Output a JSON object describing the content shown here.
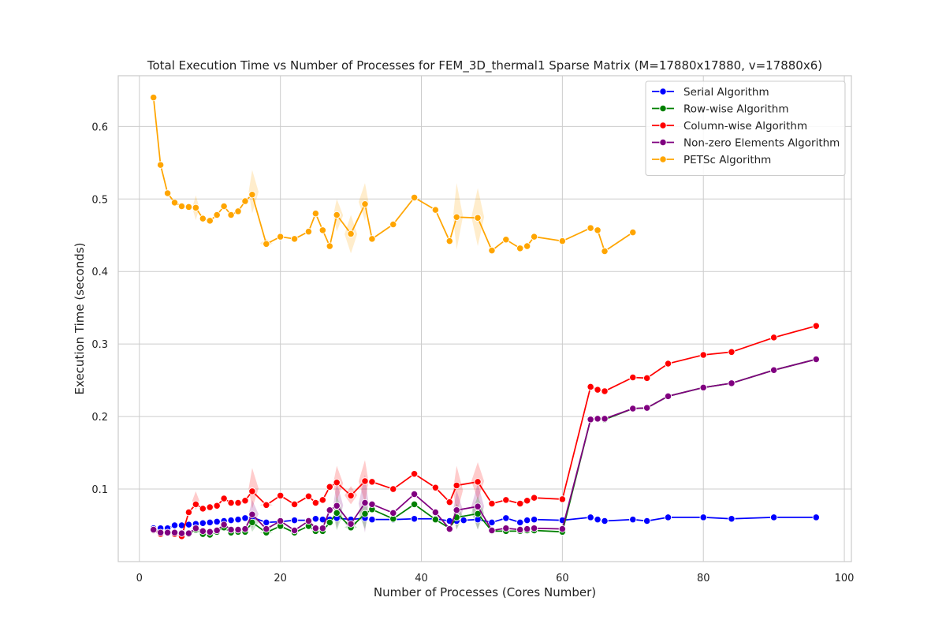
{
  "chart_data": {
    "type": "line",
    "title": "Total Execution Time vs Number of Processes for FEM_3D_thermal1 Sparse Matrix (M=17880x17880, v=17880x6)",
    "xlabel": "Number of Processes (Cores Number)",
    "ylabel": "Execution Time (seconds)",
    "xlim": [
      -3,
      101
    ],
    "ylim": [
      0.0,
      0.67
    ],
    "xticks": [
      0,
      20,
      40,
      60,
      80,
      100
    ],
    "yticks": [
      0.1,
      0.2,
      0.3,
      0.4,
      0.5,
      0.6
    ],
    "grid": true,
    "legend_position": "top-right",
    "series": [
      {
        "name": "Serial Algorithm",
        "color": "#0000ff",
        "points": [
          [
            2,
            0.046
          ],
          [
            3,
            0.046
          ],
          [
            4,
            0.046
          ],
          [
            5,
            0.05
          ],
          [
            6,
            0.05
          ],
          [
            7,
            0.051
          ],
          [
            8,
            0.052
          ],
          [
            9,
            0.053
          ],
          [
            10,
            0.054
          ],
          [
            11,
            0.055
          ],
          [
            12,
            0.056
          ],
          [
            13,
            0.057
          ],
          [
            14,
            0.058
          ],
          [
            15,
            0.06
          ],
          [
            16,
            0.061
          ],
          [
            18,
            0.054
          ],
          [
            20,
            0.055
          ],
          [
            22,
            0.057
          ],
          [
            24,
            0.057
          ],
          [
            25,
            0.059
          ],
          [
            26,
            0.058
          ],
          [
            27,
            0.058
          ],
          [
            28,
            0.06
          ],
          [
            30,
            0.058
          ],
          [
            32,
            0.06
          ],
          [
            33,
            0.058
          ],
          [
            36,
            0.058
          ],
          [
            39,
            0.059
          ],
          [
            42,
            0.059
          ],
          [
            44,
            0.056
          ],
          [
            45,
            0.056
          ],
          [
            46,
            0.057
          ],
          [
            48,
            0.058
          ],
          [
            50,
            0.054
          ],
          [
            52,
            0.06
          ],
          [
            54,
            0.054
          ],
          [
            55,
            0.057
          ],
          [
            56,
            0.058
          ],
          [
            60,
            0.057
          ],
          [
            64,
            0.061
          ],
          [
            65,
            0.058
          ],
          [
            66,
            0.056
          ],
          [
            70,
            0.058
          ],
          [
            72,
            0.056
          ],
          [
            75,
            0.061
          ],
          [
            80,
            0.061
          ],
          [
            84,
            0.059
          ],
          [
            90,
            0.061
          ],
          [
            96,
            0.061
          ]
        ]
      },
      {
        "name": "Row-wise Algorithm",
        "color": "#008000",
        "points": [
          [
            2,
            0.043
          ],
          [
            3,
            0.04
          ],
          [
            4,
            0.04
          ],
          [
            5,
            0.039
          ],
          [
            6,
            0.038
          ],
          [
            7,
            0.038
          ],
          [
            8,
            0.044
          ],
          [
            9,
            0.038
          ],
          [
            10,
            0.037
          ],
          [
            11,
            0.041
          ],
          [
            12,
            0.047
          ],
          [
            13,
            0.04
          ],
          [
            14,
            0.041
          ],
          [
            15,
            0.041
          ],
          [
            16,
            0.054
          ],
          [
            18,
            0.04
          ],
          [
            20,
            0.049
          ],
          [
            22,
            0.04
          ],
          [
            24,
            0.049
          ],
          [
            25,
            0.042
          ],
          [
            26,
            0.042
          ],
          [
            27,
            0.054
          ],
          [
            28,
            0.067
          ],
          [
            30,
            0.047
          ],
          [
            32,
            0.066
          ],
          [
            33,
            0.072
          ],
          [
            36,
            0.059
          ],
          [
            39,
            0.079
          ],
          [
            42,
            0.058
          ],
          [
            44,
            0.046
          ],
          [
            45,
            0.061
          ],
          [
            48,
            0.066
          ],
          [
            50,
            0.042
          ],
          [
            52,
            0.042
          ],
          [
            54,
            0.042
          ],
          [
            55,
            0.043
          ],
          [
            56,
            0.043
          ],
          [
            60,
            0.041
          ],
          [
            64,
            0.196
          ],
          [
            65,
            0.197
          ],
          [
            66,
            0.196
          ],
          [
            70,
            0.211
          ],
          [
            72,
            0.212
          ],
          [
            75,
            0.228
          ],
          [
            80,
            0.24
          ],
          [
            84,
            0.246
          ],
          [
            90,
            0.264
          ],
          [
            96,
            0.279
          ]
        ]
      },
      {
        "name": "Column-wise Algorithm",
        "color": "#ff0000",
        "points": [
          [
            2,
            0.044
          ],
          [
            3,
            0.038
          ],
          [
            4,
            0.04
          ],
          [
            5,
            0.038
          ],
          [
            6,
            0.035
          ],
          [
            7,
            0.068
          ],
          [
            8,
            0.079
          ],
          [
            9,
            0.073
          ],
          [
            10,
            0.075
          ],
          [
            11,
            0.077
          ],
          [
            12,
            0.087
          ],
          [
            13,
            0.081
          ],
          [
            14,
            0.081
          ],
          [
            15,
            0.084
          ],
          [
            16,
            0.097
          ],
          [
            18,
            0.078
          ],
          [
            20,
            0.091
          ],
          [
            22,
            0.079
          ],
          [
            24,
            0.09
          ],
          [
            25,
            0.081
          ],
          [
            26,
            0.085
          ],
          [
            27,
            0.103
          ],
          [
            28,
            0.109
          ],
          [
            30,
            0.091
          ],
          [
            32,
            0.111
          ],
          [
            33,
            0.11
          ],
          [
            36,
            0.1
          ],
          [
            39,
            0.121
          ],
          [
            42,
            0.102
          ],
          [
            44,
            0.082
          ],
          [
            45,
            0.105
          ],
          [
            48,
            0.11
          ],
          [
            50,
            0.08
          ],
          [
            52,
            0.085
          ],
          [
            54,
            0.08
          ],
          [
            55,
            0.084
          ],
          [
            56,
            0.088
          ],
          [
            60,
            0.086
          ],
          [
            64,
            0.241
          ],
          [
            65,
            0.237
          ],
          [
            66,
            0.235
          ],
          [
            70,
            0.254
          ],
          [
            72,
            0.253
          ],
          [
            75,
            0.273
          ],
          [
            80,
            0.285
          ],
          [
            84,
            0.289
          ],
          [
            90,
            0.309
          ],
          [
            96,
            0.325
          ]
        ]
      },
      {
        "name": "Non-zero Elements Algorithm",
        "color": "#800080",
        "points": [
          [
            2,
            0.044
          ],
          [
            3,
            0.04
          ],
          [
            4,
            0.04
          ],
          [
            5,
            0.04
          ],
          [
            6,
            0.039
          ],
          [
            7,
            0.039
          ],
          [
            8,
            0.046
          ],
          [
            9,
            0.042
          ],
          [
            10,
            0.041
          ],
          [
            11,
            0.043
          ],
          [
            12,
            0.051
          ],
          [
            13,
            0.044
          ],
          [
            14,
            0.044
          ],
          [
            15,
            0.045
          ],
          [
            16,
            0.065
          ],
          [
            18,
            0.045
          ],
          [
            20,
            0.056
          ],
          [
            22,
            0.043
          ],
          [
            24,
            0.056
          ],
          [
            25,
            0.046
          ],
          [
            26,
            0.046
          ],
          [
            27,
            0.071
          ],
          [
            28,
            0.077
          ],
          [
            30,
            0.052
          ],
          [
            32,
            0.081
          ],
          [
            33,
            0.079
          ],
          [
            36,
            0.067
          ],
          [
            39,
            0.093
          ],
          [
            42,
            0.068
          ],
          [
            44,
            0.045
          ],
          [
            45,
            0.071
          ],
          [
            48,
            0.076
          ],
          [
            50,
            0.043
          ],
          [
            52,
            0.046
          ],
          [
            54,
            0.044
          ],
          [
            55,
            0.045
          ],
          [
            56,
            0.046
          ],
          [
            60,
            0.045
          ],
          [
            64,
            0.196
          ],
          [
            65,
            0.197
          ],
          [
            66,
            0.197
          ],
          [
            70,
            0.211
          ],
          [
            72,
            0.212
          ],
          [
            75,
            0.228
          ],
          [
            80,
            0.24
          ],
          [
            84,
            0.246
          ],
          [
            90,
            0.264
          ],
          [
            96,
            0.279
          ]
        ]
      },
      {
        "name": "PETSc Algorithm",
        "color": "#ffa500",
        "points": [
          [
            2,
            0.64
          ],
          [
            3,
            0.547
          ],
          [
            4,
            0.508
          ],
          [
            5,
            0.495
          ],
          [
            6,
            0.49
          ],
          [
            7,
            0.489
          ],
          [
            8,
            0.488
          ],
          [
            9,
            0.473
          ],
          [
            10,
            0.47
          ],
          [
            11,
            0.478
          ],
          [
            12,
            0.49
          ],
          [
            13,
            0.478
          ],
          [
            14,
            0.483
          ],
          [
            15,
            0.497
          ],
          [
            16,
            0.506
          ],
          [
            18,
            0.438
          ],
          [
            20,
            0.448
          ],
          [
            22,
            0.445
          ],
          [
            24,
            0.455
          ],
          [
            25,
            0.48
          ],
          [
            26,
            0.457
          ],
          [
            27,
            0.435
          ],
          [
            28,
            0.478
          ],
          [
            30,
            0.452
          ],
          [
            32,
            0.493
          ],
          [
            33,
            0.445
          ],
          [
            36,
            0.465
          ],
          [
            39,
            0.502
          ],
          [
            42,
            0.485
          ],
          [
            44,
            0.442
          ],
          [
            45,
            0.475
          ],
          [
            48,
            0.474
          ],
          [
            50,
            0.429
          ],
          [
            52,
            0.444
          ],
          [
            54,
            0.432
          ],
          [
            55,
            0.435
          ],
          [
            56,
            0.448
          ],
          [
            60,
            0.442
          ],
          [
            64,
            0.46
          ],
          [
            65,
            0.457
          ],
          [
            66,
            0.428
          ],
          [
            70,
            0.454
          ]
        ]
      }
    ],
    "confidence_bands": [
      {
        "series": "PETSc Algorithm",
        "ranges": [
          [
            8,
            0.471,
            0.505
          ],
          [
            16,
            0.48,
            0.54
          ],
          [
            18,
            0.433,
            0.445
          ],
          [
            28,
            0.455,
            0.5
          ],
          [
            30,
            0.425,
            0.478
          ],
          [
            32,
            0.47,
            0.522
          ],
          [
            45,
            0.43,
            0.522
          ],
          [
            48,
            0.435,
            0.515
          ]
        ]
      },
      {
        "series": "Column-wise Algorithm",
        "ranges": [
          [
            8,
            0.071,
            0.097
          ],
          [
            16,
            0.073,
            0.129
          ],
          [
            18,
            0.075,
            0.081
          ],
          [
            28,
            0.084,
            0.132
          ],
          [
            30,
            0.079,
            0.104
          ],
          [
            32,
            0.081,
            0.14
          ],
          [
            45,
            0.065,
            0.132
          ],
          [
            48,
            0.085,
            0.137
          ]
        ]
      },
      {
        "series": "Non-zero Elements Algorithm",
        "ranges": [
          [
            8,
            0.04,
            0.052
          ],
          [
            16,
            0.046,
            0.085
          ],
          [
            18,
            0.043,
            0.047
          ],
          [
            28,
            0.045,
            0.11
          ],
          [
            30,
            0.045,
            0.06
          ],
          [
            32,
            0.04,
            0.12
          ],
          [
            45,
            0.044,
            0.098
          ],
          [
            48,
            0.044,
            0.108
          ]
        ]
      },
      {
        "series": "Row-wise Algorithm",
        "ranges": [
          [
            8,
            0.039,
            0.05
          ],
          [
            16,
            0.041,
            0.067
          ],
          [
            18,
            0.037,
            0.043
          ],
          [
            28,
            0.043,
            0.09
          ],
          [
            30,
            0.043,
            0.052
          ],
          [
            32,
            0.045,
            0.087
          ],
          [
            45,
            0.044,
            0.08
          ],
          [
            48,
            0.044,
            0.09
          ]
        ]
      }
    ]
  }
}
